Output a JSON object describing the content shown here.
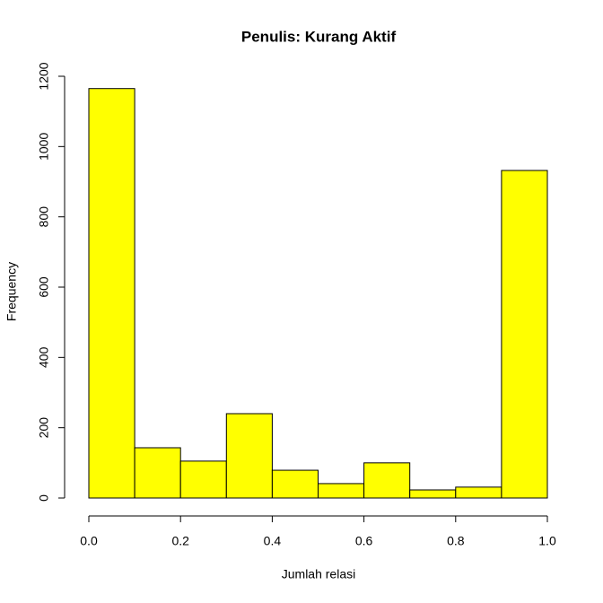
{
  "chart_data": {
    "type": "histogram",
    "title": "Penulis: Kurang Aktif",
    "x_label": "Jumlah relasi",
    "y_label": "Frequency",
    "bins": [
      0,
      0.1,
      0.2,
      0.3,
      0.4,
      0.5,
      0.6,
      0.7,
      0.8,
      0.9,
      1
    ],
    "counts": [
      1165,
      143,
      105,
      240,
      79,
      41,
      100,
      23,
      31,
      932
    ],
    "color": "#ffff00",
    "xlim": [
      0,
      1
    ],
    "xticks": [
      {
        "value": 0,
        "label": "0.0"
      },
      0.2,
      0.4,
      0.6,
      0.8,
      {
        "value": 1,
        "label": "1.0"
      }
    ],
    "ylim": [
      0,
      1200
    ],
    "yticks": [
      0,
      200,
      400,
      600,
      800,
      1000,
      1200
    ]
  }
}
